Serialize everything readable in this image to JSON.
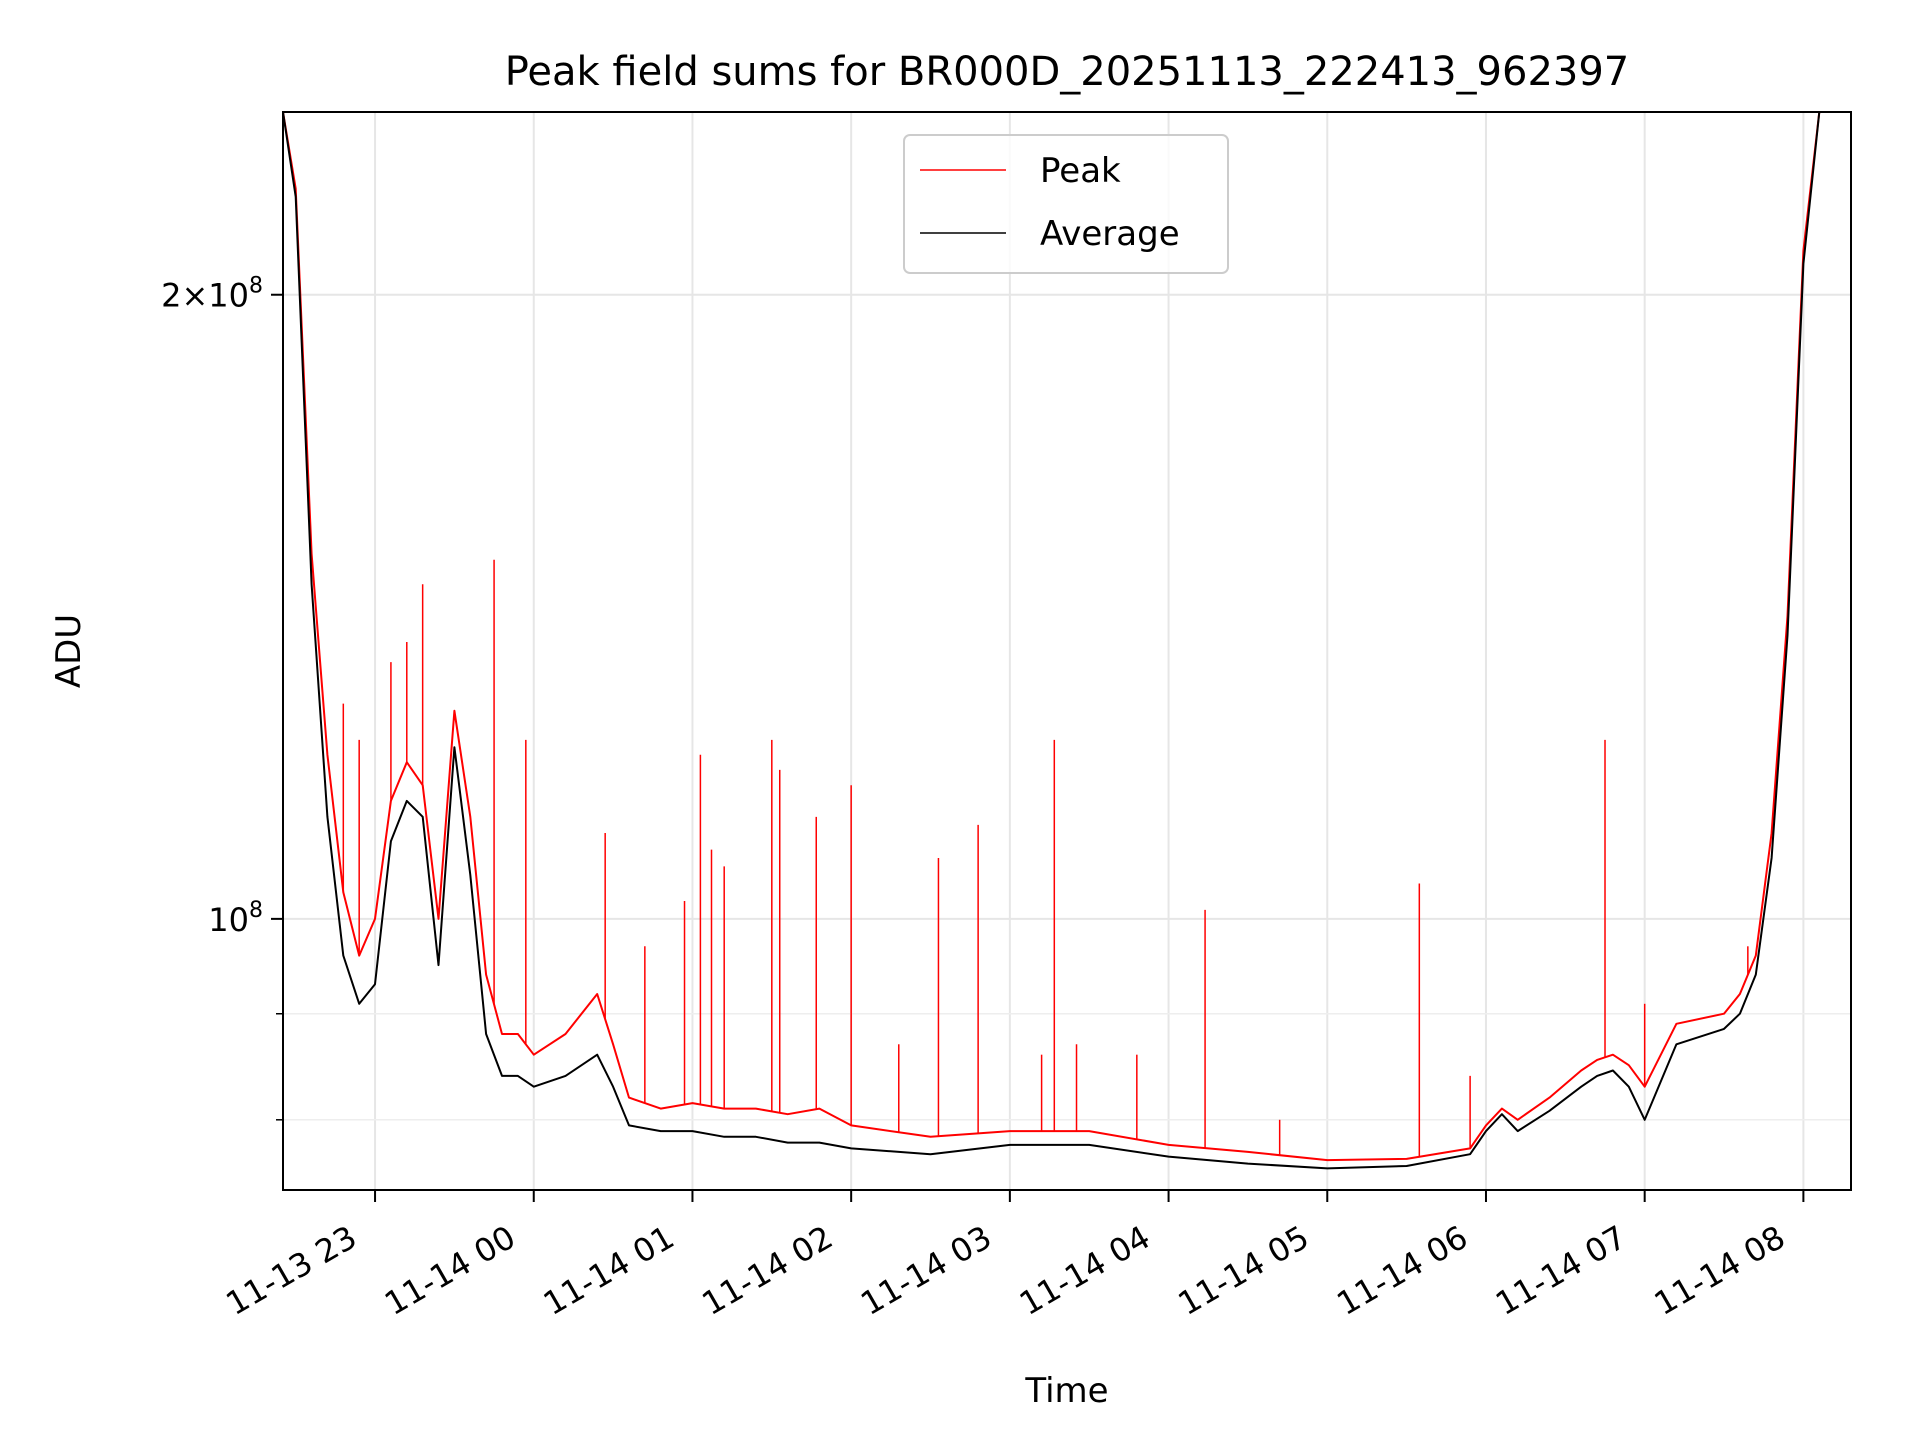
{
  "chart_data": {
    "type": "line",
    "title": "Peak field sums for BR000D_20251113_222413_962397",
    "xlabel": "Time",
    "ylabel": "ADU",
    "yscale": "log",
    "ylim": [
      74000000,
      245000000
    ],
    "xlim": [
      22.42,
      32.3
    ],
    "grid": true,
    "legend_position": "top-center",
    "x_ticks": [
      {
        "value": 23,
        "label": "11-13 23"
      },
      {
        "value": 24,
        "label": "11-14 00"
      },
      {
        "value": 25,
        "label": "11-14 01"
      },
      {
        "value": 26,
        "label": "11-14 02"
      },
      {
        "value": 27,
        "label": "11-14 03"
      },
      {
        "value": 28,
        "label": "11-14 04"
      },
      {
        "value": 29,
        "label": "11-14 05"
      },
      {
        "value": 30,
        "label": "11-14 06"
      },
      {
        "value": 31,
        "label": "11-14 07"
      },
      {
        "value": 32,
        "label": "11-14 08"
      }
    ],
    "y_ticks": [
      {
        "value": 200000000,
        "mantissa": "2",
        "times": "×",
        "base": "10",
        "exp": "8"
      },
      {
        "value": 100000000,
        "mantissa": "",
        "times": "",
        "base": "10",
        "exp": "8"
      }
    ],
    "y_minor_ticks": [
      90000000,
      80000000
    ],
    "series": [
      {
        "name": "Peak",
        "color": "#ff0000",
        "x": [
          22.42,
          22.5,
          22.6,
          22.7,
          22.8,
          22.9,
          23.0,
          23.1,
          23.2,
          23.3,
          23.4,
          23.5,
          23.6,
          23.7,
          23.8,
          23.9,
          24.0,
          24.2,
          24.4,
          24.5,
          24.6,
          24.8,
          25.0,
          25.2,
          25.4,
          25.6,
          25.8,
          26.0,
          26.5,
          27.0,
          27.5,
          28.0,
          28.5,
          29.0,
          29.5,
          29.9,
          30.0,
          30.1,
          30.2,
          30.4,
          30.6,
          30.7,
          30.8,
          30.9,
          31.0,
          31.2,
          31.5,
          31.6,
          31.7,
          31.8,
          31.9,
          32.0,
          32.1,
          32.3
        ],
        "y": [
          245000000,
          225000000,
          150000000,
          120000000,
          103000000,
          96000000,
          100000000,
          114000000,
          119000000,
          116000000,
          100000000,
          126000000,
          112000000,
          94000000,
          88000000,
          88000000,
          86000000,
          88000000,
          92000000,
          87000000,
          82000000,
          81000000,
          81500000,
          81000000,
          81000000,
          80500000,
          81000000,
          79500000,
          78500000,
          79000000,
          79000000,
          77800000,
          77200000,
          76500000,
          76600000,
          77500000,
          79500000,
          81000000,
          80000000,
          82000000,
          84500000,
          85500000,
          86000000,
          85000000,
          83000000,
          89000000,
          90000000,
          92000000,
          96000000,
          110000000,
          140000000,
          210000000,
          245000000,
          245000000
        ],
        "spikes": [
          [
            22.6,
            150000000
          ],
          [
            22.8,
            127000000
          ],
          [
            22.9,
            122000000
          ],
          [
            23.1,
            133000000
          ],
          [
            23.2,
            136000000
          ],
          [
            23.3,
            145000000
          ],
          [
            23.75,
            149000000
          ],
          [
            23.95,
            122000000
          ],
          [
            24.45,
            110000000
          ],
          [
            24.7,
            97000000
          ],
          [
            24.95,
            102000000
          ],
          [
            25.05,
            120000000
          ],
          [
            25.12,
            108000000
          ],
          [
            25.2,
            106000000
          ],
          [
            25.5,
            122000000
          ],
          [
            25.55,
            118000000
          ],
          [
            25.78,
            112000000
          ],
          [
            26.0,
            116000000
          ],
          [
            26.3,
            87000000
          ],
          [
            26.55,
            107000000
          ],
          [
            26.8,
            111000000
          ],
          [
            27.2,
            86000000
          ],
          [
            27.28,
            122000000
          ],
          [
            27.42,
            87000000
          ],
          [
            27.8,
            86000000
          ],
          [
            28.23,
            101000000
          ],
          [
            28.7,
            80000000
          ],
          [
            29.58,
            104000000
          ],
          [
            29.9,
            84000000
          ],
          [
            30.75,
            122000000
          ],
          [
            31.0,
            91000000
          ],
          [
            31.65,
            97000000
          ]
        ]
      },
      {
        "name": "Average",
        "color": "#000000",
        "x": [
          22.42,
          22.5,
          22.6,
          22.7,
          22.8,
          22.9,
          23.0,
          23.1,
          23.2,
          23.3,
          23.4,
          23.5,
          23.6,
          23.7,
          23.8,
          23.9,
          24.0,
          24.2,
          24.4,
          24.5,
          24.6,
          24.8,
          25.0,
          25.2,
          25.4,
          25.6,
          25.8,
          26.0,
          26.5,
          27.0,
          27.5,
          28.0,
          28.5,
          29.0,
          29.5,
          29.9,
          30.0,
          30.1,
          30.2,
          30.4,
          30.6,
          30.7,
          30.8,
          30.9,
          31.0,
          31.2,
          31.5,
          31.6,
          31.7,
          31.8,
          31.9,
          32.0,
          32.1,
          32.3
        ],
        "y": [
          245000000,
          223000000,
          145000000,
          112000000,
          96000000,
          91000000,
          93000000,
          109000000,
          114000000,
          112000000,
          95000000,
          121000000,
          105000000,
          88000000,
          84000000,
          84000000,
          83000000,
          84000000,
          86000000,
          83000000,
          79500000,
          79000000,
          79000000,
          78500000,
          78500000,
          78000000,
          78000000,
          77500000,
          77000000,
          77800000,
          77800000,
          76800000,
          76200000,
          75800000,
          76000000,
          77000000,
          79000000,
          80500000,
          79000000,
          80800000,
          83000000,
          84000000,
          84500000,
          83000000,
          80000000,
          87000000,
          88500000,
          90000000,
          94000000,
          107000000,
          137000000,
          207000000,
          245000000,
          245000000
        ]
      }
    ]
  }
}
